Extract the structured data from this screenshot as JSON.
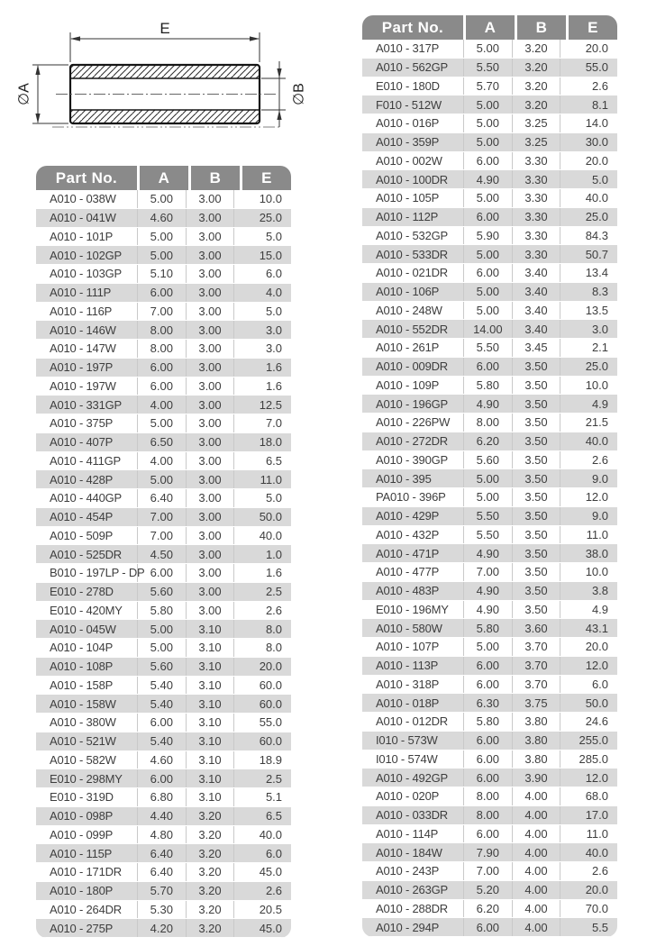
{
  "diagram": {
    "length_dim_label": "E",
    "outer_diameter_label": "∅A",
    "inner_diameter_label": "∅B"
  },
  "tables": {
    "columns": [
      "Part No.",
      "A",
      "B",
      "E"
    ],
    "left": {
      "rows": [
        [
          "A010 - 038W",
          "5.00",
          "3.00",
          "10.0"
        ],
        [
          "A010 - 041W",
          "4.60",
          "3.00",
          "25.0"
        ],
        [
          "A010 - 101P",
          "5.00",
          "3.00",
          "5.0"
        ],
        [
          "A010 - 102GP",
          "5.00",
          "3.00",
          "15.0"
        ],
        [
          "A010 - 103GP",
          "5.10",
          "3.00",
          "6.0"
        ],
        [
          "A010 - 111P",
          "6.00",
          "3.00",
          "4.0"
        ],
        [
          "A010 - 116P",
          "7.00",
          "3.00",
          "5.0"
        ],
        [
          "A010 - 146W",
          "8.00",
          "3.00",
          "3.0"
        ],
        [
          "A010 - 147W",
          "8.00",
          "3.00",
          "3.0"
        ],
        [
          "A010 - 197P",
          "6.00",
          "3.00",
          "1.6"
        ],
        [
          "A010 - 197W",
          "6.00",
          "3.00",
          "1.6"
        ],
        [
          "A010 - 331GP",
          "4.00",
          "3.00",
          "12.5"
        ],
        [
          "A010 - 375P",
          "5.00",
          "3.00",
          "7.0"
        ],
        [
          "A010 - 407P",
          "6.50",
          "3.00",
          "18.0"
        ],
        [
          "A010 - 411GP",
          "4.00",
          "3.00",
          "6.5"
        ],
        [
          "A010 - 428P",
          "5.00",
          "3.00",
          "11.0"
        ],
        [
          "A010 - 440GP",
          "6.40",
          "3.00",
          "5.0"
        ],
        [
          "A010 - 454P",
          "7.00",
          "3.00",
          "50.0"
        ],
        [
          "A010 - 509P",
          "7.00",
          "3.00",
          "40.0"
        ],
        [
          "A010 - 525DR",
          "4.50",
          "3.00",
          "1.0"
        ],
        [
          "B010 - 197LP - DP",
          "6.00",
          "3.00",
          "1.6"
        ],
        [
          "E010 - 278D",
          "5.60",
          "3.00",
          "2.5"
        ],
        [
          "E010 - 420MY",
          "5.80",
          "3.00",
          "2.6"
        ],
        [
          "A010 - 045W",
          "5.00",
          "3.10",
          "8.0"
        ],
        [
          "A010 - 104P",
          "5.00",
          "3.10",
          "8.0"
        ],
        [
          "A010 - 108P",
          "5.60",
          "3.10",
          "20.0"
        ],
        [
          "A010 - 158P",
          "5.40",
          "3.10",
          "60.0"
        ],
        [
          "A010 - 158W",
          "5.40",
          "3.10",
          "60.0"
        ],
        [
          "A010 - 380W",
          "6.00",
          "3.10",
          "55.0"
        ],
        [
          "A010 - 521W",
          "5.40",
          "3.10",
          "60.0"
        ],
        [
          "A010 - 582W",
          "4.60",
          "3.10",
          "18.9"
        ],
        [
          "E010 - 298MY",
          "6.00",
          "3.10",
          "2.5"
        ],
        [
          "E010 - 319D",
          "6.80",
          "3.10",
          "5.1"
        ],
        [
          "A010 - 098P",
          "4.40",
          "3.20",
          "6.5"
        ],
        [
          "A010 - 099P",
          "4.80",
          "3.20",
          "40.0"
        ],
        [
          "A010 - 115P",
          "6.40",
          "3.20",
          "6.0"
        ],
        [
          "A010 - 171DR",
          "6.40",
          "3.20",
          "45.0"
        ],
        [
          "A010 - 180P",
          "5.70",
          "3.20",
          "2.6"
        ],
        [
          "A010 - 264DR",
          "5.30",
          "3.20",
          "20.5"
        ],
        [
          "A010 - 275P",
          "4.20",
          "3.20",
          "45.0"
        ]
      ]
    },
    "right": {
      "rows": [
        [
          "A010 - 317P",
          "5.00",
          "3.20",
          "20.0"
        ],
        [
          "A010 - 562GP",
          "5.50",
          "3.20",
          "55.0"
        ],
        [
          "E010 - 180D",
          "5.70",
          "3.20",
          "2.6"
        ],
        [
          "F010 - 512W",
          "5.00",
          "3.20",
          "8.1"
        ],
        [
          "A010 - 016P",
          "5.00",
          "3.25",
          "14.0"
        ],
        [
          "A010 - 359P",
          "5.00",
          "3.25",
          "30.0"
        ],
        [
          "A010 - 002W",
          "6.00",
          "3.30",
          "20.0"
        ],
        [
          "A010 - 100DR",
          "4.90",
          "3.30",
          "5.0"
        ],
        [
          "A010 - 105P",
          "5.00",
          "3.30",
          "40.0"
        ],
        [
          "A010 - 112P",
          "6.00",
          "3.30",
          "25.0"
        ],
        [
          "A010 - 532GP",
          "5.90",
          "3.30",
          "84.3"
        ],
        [
          "A010 - 533DR",
          "5.00",
          "3.30",
          "50.7"
        ],
        [
          "A010 - 021DR",
          "6.00",
          "3.40",
          "13.4"
        ],
        [
          "A010 - 106P",
          "5.00",
          "3.40",
          "8.3"
        ],
        [
          "A010 - 248W",
          "5.00",
          "3.40",
          "13.5"
        ],
        [
          "A010 - 552DR",
          "14.00",
          "3.40",
          "3.0"
        ],
        [
          "A010 - 261P",
          "5.50",
          "3.45",
          "2.1"
        ],
        [
          "A010 - 009DR",
          "6.00",
          "3.50",
          "25.0"
        ],
        [
          "A010 - 109P",
          "5.80",
          "3.50",
          "10.0"
        ],
        [
          "A010 - 196GP",
          "4.90",
          "3.50",
          "4.9"
        ],
        [
          "A010 - 226PW",
          "8.00",
          "3.50",
          "21.5"
        ],
        [
          "A010 - 272DR",
          "6.20",
          "3.50",
          "40.0"
        ],
        [
          "A010 - 390GP",
          "5.60",
          "3.50",
          "2.6"
        ],
        [
          "A010 - 395",
          "5.00",
          "3.50",
          "9.0"
        ],
        [
          "PA010 - 396P",
          "5.00",
          "3.50",
          "12.0"
        ],
        [
          "A010 - 429P",
          "5.50",
          "3.50",
          "9.0"
        ],
        [
          "A010 - 432P",
          "5.50",
          "3.50",
          "11.0"
        ],
        [
          "A010 - 471P",
          "4.90",
          "3.50",
          "38.0"
        ],
        [
          "A010 - 477P",
          "7.00",
          "3.50",
          "10.0"
        ],
        [
          "A010 - 483P",
          "4.90",
          "3.50",
          "3.8"
        ],
        [
          "E010 - 196MY",
          "4.90",
          "3.50",
          "4.9"
        ],
        [
          "A010 - 580W",
          "5.80",
          "3.60",
          "43.1"
        ],
        [
          "A010 - 107P",
          "5.00",
          "3.70",
          "20.0"
        ],
        [
          "A010 - 113P",
          "6.00",
          "3.70",
          "12.0"
        ],
        [
          "A010 - 318P",
          "6.00",
          "3.70",
          "6.0"
        ],
        [
          "A010 - 018P",
          "6.30",
          "3.75",
          "50.0"
        ],
        [
          "A010 - 012DR",
          "5.80",
          "3.80",
          "24.6"
        ],
        [
          "I010 - 573W",
          "6.00",
          "3.80",
          "255.0"
        ],
        [
          "I010 - 574W",
          "6.00",
          "3.80",
          "285.0"
        ],
        [
          "A010 - 492GP",
          "6.00",
          "3.90",
          "12.0"
        ],
        [
          "A010 - 020P",
          "8.00",
          "4.00",
          "68.0"
        ],
        [
          "A010 - 033DR",
          "8.00",
          "4.00",
          "17.0"
        ],
        [
          "A010 - 114P",
          "6.00",
          "4.00",
          "11.0"
        ],
        [
          "A010 - 184W",
          "7.90",
          "4.00",
          "40.0"
        ],
        [
          "A010 - 243P",
          "7.00",
          "4.00",
          "2.6"
        ],
        [
          "A010 - 263GP",
          "5.20",
          "4.00",
          "20.0"
        ],
        [
          "A010 - 288DR",
          "6.20",
          "4.00",
          "70.0"
        ],
        [
          "A010 - 294P",
          "6.00",
          "4.00",
          "5.5"
        ]
      ]
    }
  },
  "colors": {
    "header_bg": "#8a8a8a",
    "header_text": "#ffffff",
    "alt_row_bg": "#d9d9d9",
    "body_text": "#3e3e3e"
  }
}
